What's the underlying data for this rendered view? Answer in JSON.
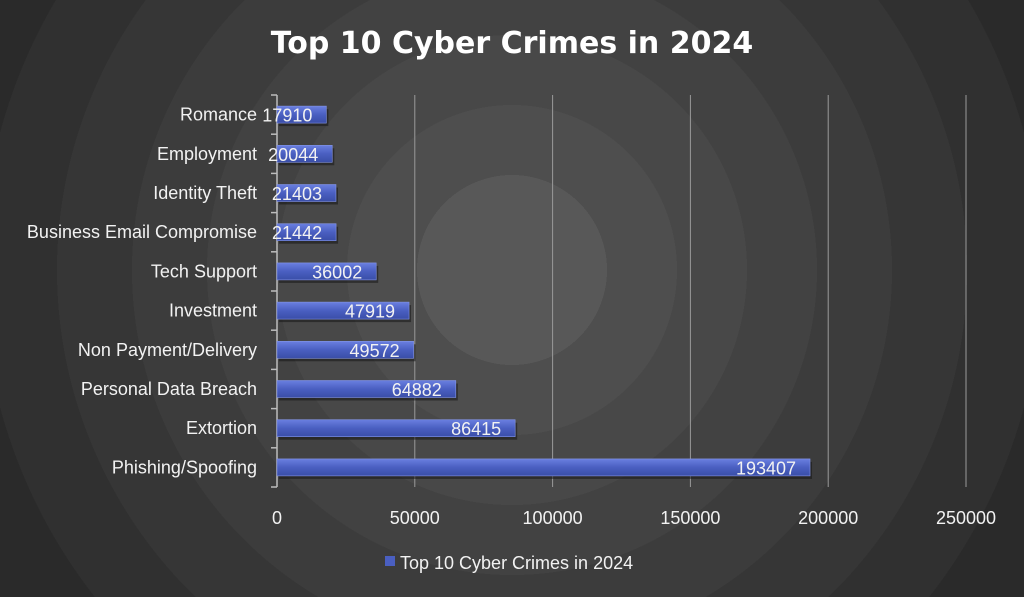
{
  "chart_data": {
    "type": "bar",
    "orientation": "horizontal",
    "title": "Top 10 Cyber Crimes in 2024",
    "categories": [
      "Romance",
      "Employment",
      "Identity Theft",
      "Business Email Compromise",
      "Tech Support",
      "Investment",
      "Non Payment/Delivery",
      "Personal Data Breach",
      "Extortion",
      "Phishing/Spoofing"
    ],
    "series": [
      {
        "name": "Top 10 Cyber Crimes in 2024",
        "values": [
          17910,
          20044,
          21403,
          21442,
          36002,
          47919,
          49572,
          64882,
          86415,
          193407
        ]
      }
    ],
    "xlim": [
      0,
      250000
    ],
    "x_ticks": [
      0,
      50000,
      100000,
      150000,
      200000,
      250000
    ],
    "grid": "vertical",
    "legend_position": "bottom",
    "data_labels": true,
    "colors": {
      "bar": "#4a5fc1",
      "bar_light": "#5f74d6",
      "grid": "#9a9a9a",
      "text": "#f2f2f2",
      "title": "#ffffff"
    }
  }
}
